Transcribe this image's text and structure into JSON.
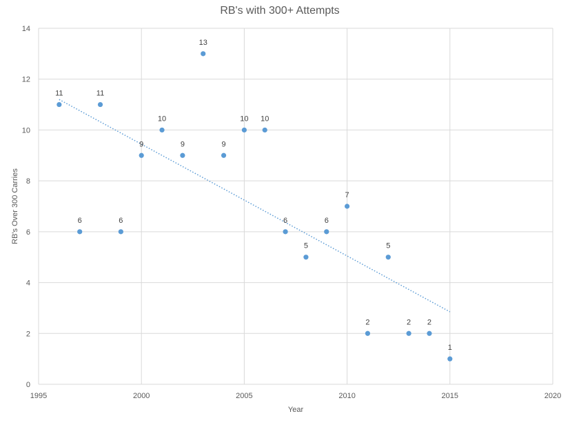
{
  "chart_data": {
    "type": "scatter",
    "title": "RB's with 300+ Attempts",
    "xlabel": "Year",
    "ylabel": "RB's Over 300 Carries",
    "xlim": [
      1995,
      2020
    ],
    "ylim": [
      0,
      14
    ],
    "x_ticks": [
      1995,
      2000,
      2005,
      2010,
      2015,
      2020
    ],
    "y_ticks": [
      0,
      2,
      4,
      6,
      8,
      10,
      12,
      14
    ],
    "grid": true,
    "legend": "none",
    "series": [
      {
        "name": "RB's Over 300 Carries",
        "color": "#5B9BD5",
        "x": [
          1996,
          1997,
          1998,
          1999,
          2000,
          2001,
          2002,
          2003,
          2004,
          2005,
          2006,
          2007,
          2008,
          2009,
          2010,
          2011,
          2012,
          2013,
          2014,
          2015
        ],
        "y": [
          11,
          6,
          11,
          6,
          9,
          10,
          9,
          13,
          9,
          10,
          10,
          6,
          5,
          6,
          7,
          2,
          5,
          2,
          2,
          1
        ],
        "data_labels": [
          "11",
          "6",
          "11",
          "6",
          "9",
          "10",
          "9",
          "13",
          "9",
          "10",
          "10",
          "6",
          "5",
          "6",
          "7",
          "2",
          "5",
          "2",
          "2",
          "1"
        ]
      }
    ],
    "trendline": {
      "type": "linear",
      "style": "dotted",
      "color": "#5B9BD5",
      "x": [
        1996,
        2015
      ],
      "y": [
        11.2,
        2.85
      ]
    }
  }
}
